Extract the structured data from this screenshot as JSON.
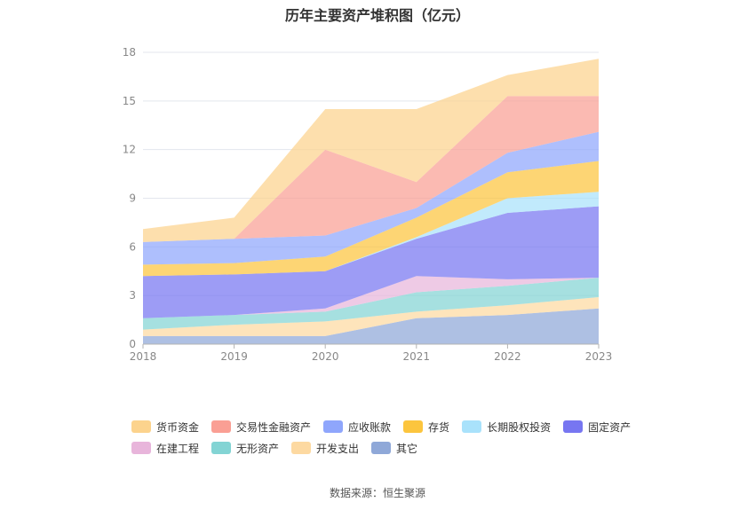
{
  "title": "历年主要资产堆积图（亿元）",
  "source": "数据来源：恒生聚源",
  "colors": {
    "货币资金": "#fcd38d",
    "交易性金融资产": "#fa9f94",
    "应收账款": "#8fa6fc",
    "存货": "#fcc53e",
    "长期股权投资": "#a9e2fb",
    "固定资产": "#7776f1",
    "在建工程": "#e8b5db",
    "无形资产": "#83d4d4",
    "开发支出": "#fdd9a1",
    "其它": "#8fa8d8"
  },
  "chart_data": {
    "type": "area",
    "stacked": true,
    "title": "历年主要资产堆积图（亿元）",
    "x": [
      "2018",
      "2019",
      "2020",
      "2021",
      "2022",
      "2023"
    ],
    "ylim": [
      0,
      18
    ],
    "yticks": [
      0,
      3,
      6,
      9,
      12,
      15,
      18
    ],
    "grid": true,
    "legend_position": "bottom",
    "series": [
      {
        "name": "其它",
        "values": [
          0.5,
          0.5,
          0.5,
          1.6,
          1.8,
          2.2
        ]
      },
      {
        "name": "开发支出",
        "values": [
          0.4,
          0.7,
          0.9,
          0.4,
          0.6,
          0.7
        ]
      },
      {
        "name": "无形资产",
        "values": [
          0.7,
          0.6,
          0.6,
          1.2,
          1.2,
          1.2
        ]
      },
      {
        "name": "在建工程",
        "values": [
          0.0,
          0.0,
          0.2,
          1.0,
          0.4,
          0.0
        ]
      },
      {
        "name": "固定资产",
        "values": [
          2.6,
          2.5,
          2.3,
          2.3,
          4.1,
          4.4
        ]
      },
      {
        "name": "长期股权投资",
        "values": [
          0.0,
          0.0,
          0.0,
          0.1,
          0.9,
          0.9
        ]
      },
      {
        "name": "存货",
        "values": [
          0.7,
          0.7,
          0.9,
          1.2,
          1.6,
          1.9
        ]
      },
      {
        "name": "应收账款",
        "values": [
          1.4,
          1.5,
          1.3,
          0.6,
          1.2,
          1.8
        ]
      },
      {
        "name": "交易性金融资产",
        "values": [
          0.0,
          0.0,
          5.3,
          1.6,
          3.5,
          2.2
        ]
      },
      {
        "name": "货币资金",
        "values": [
          0.8,
          1.3,
          2.5,
          4.5,
          1.3,
          2.3
        ]
      }
    ]
  },
  "legend": [
    {
      "label": "货币资金"
    },
    {
      "label": "交易性金融资产"
    },
    {
      "label": "应收账款"
    },
    {
      "label": "存货"
    },
    {
      "label": "长期股权投资"
    },
    {
      "label": "固定资产"
    },
    {
      "label": "在建工程"
    },
    {
      "label": "无形资产"
    },
    {
      "label": "开发支出"
    },
    {
      "label": "其它"
    }
  ]
}
